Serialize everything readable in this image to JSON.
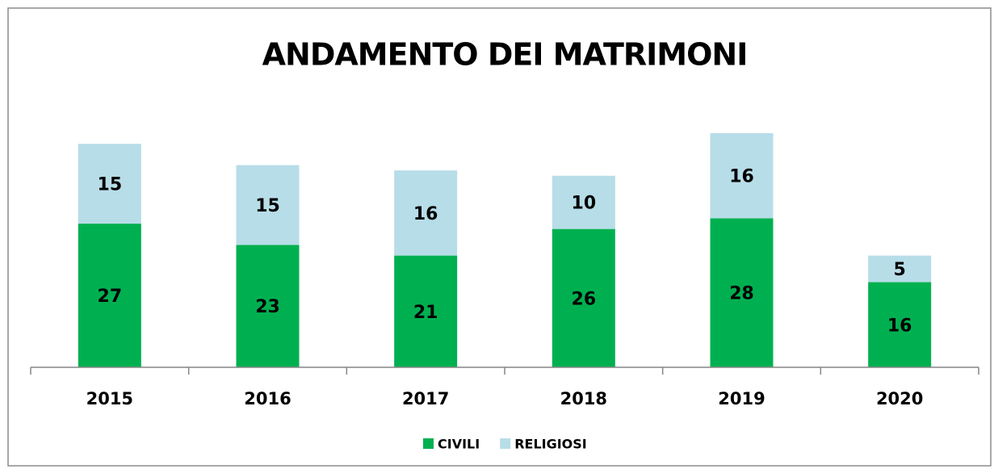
{
  "chart_data": {
    "type": "stacked_bar",
    "title": "ANDAMENTO DEI MATRIMONI",
    "categories": [
      "2015",
      "2016",
      "2017",
      "2018",
      "2019",
      "2020"
    ],
    "series": [
      {
        "name": "CIVILI",
        "color": "#00b050",
        "values": [
          27,
          23,
          21,
          26,
          28,
          16
        ]
      },
      {
        "name": "RELIGIOSI",
        "color": "#b7dde8",
        "values": [
          15,
          15,
          16,
          10,
          16,
          5
        ]
      }
    ],
    "legend": "bottom"
  }
}
